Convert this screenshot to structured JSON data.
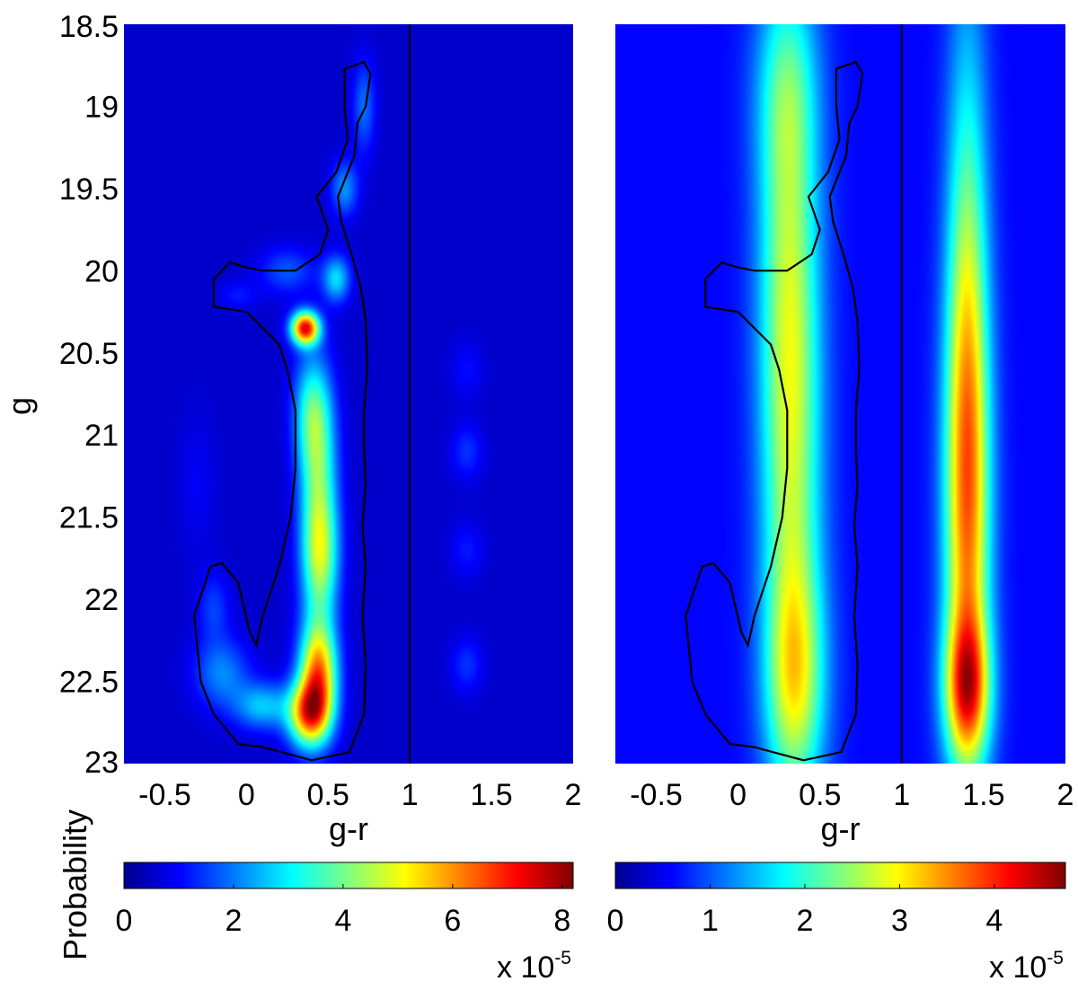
{
  "chart_data": [
    {
      "type": "heatmap",
      "panel": "left",
      "xlabel": "g-r",
      "ylabel": "g",
      "xlim": [
        -0.75,
        2
      ],
      "ylim": [
        23,
        18.5
      ],
      "y_axis_reversed": true,
      "x_ticks": [
        "-0.5",
        "0",
        "0.5",
        "1",
        "1.5",
        "2"
      ],
      "x_tick_values": [
        -0.5,
        0,
        0.5,
        1,
        1.5,
        2
      ],
      "y_ticks": [
        "18.5",
        "19",
        "19.5",
        "20",
        "20.5",
        "21",
        "21.5",
        "22",
        "22.5",
        "23"
      ],
      "y_tick_values": [
        18.5,
        19,
        19.5,
        20,
        20.5,
        21,
        21.5,
        22,
        22.5,
        23
      ],
      "vertical_line_x": 1,
      "background_color": "#0000a8",
      "colormap": "jet",
      "colorbar": {
        "label": "Probability",
        "min": 0,
        "max": 8.2,
        "ticks": [
          "0",
          "2",
          "4",
          "6",
          "8"
        ],
        "tick_values": [
          0,
          2,
          4,
          6,
          8
        ],
        "exponent_prefix": "x 10",
        "exponent": "-5"
      },
      "density_peaks": [
        {
          "x": 0.36,
          "y": 20.35,
          "sx": 0.06,
          "sy": 0.07,
          "amp": 6.6
        },
        {
          "x": 0.44,
          "y": 22.45,
          "sx": 0.08,
          "sy": 0.22,
          "amp": 5.4
        },
        {
          "x": 0.38,
          "y": 22.7,
          "sx": 0.09,
          "sy": 0.14,
          "amp": 5.0
        },
        {
          "x": 0.45,
          "y": 21.75,
          "sx": 0.08,
          "sy": 0.28,
          "amp": 3.6
        },
        {
          "x": 0.44,
          "y": 21.2,
          "sx": 0.08,
          "sy": 0.35,
          "amp": 2.6
        },
        {
          "x": 0.4,
          "y": 20.85,
          "sx": 0.08,
          "sy": 0.25,
          "amp": 2.2
        },
        {
          "x": 0.55,
          "y": 20.05,
          "sx": 0.06,
          "sy": 0.1,
          "amp": 2.2
        },
        {
          "x": 0.6,
          "y": 19.5,
          "sx": 0.06,
          "sy": 0.12,
          "amp": 1.6
        },
        {
          "x": 0.25,
          "y": 20.0,
          "sx": 0.12,
          "sy": 0.1,
          "amp": 1.1
        },
        {
          "x": 0.72,
          "y": 19.0,
          "sx": 0.05,
          "sy": 0.2,
          "amp": 1.3
        },
        {
          "x": -0.15,
          "y": 22.45,
          "sx": 0.12,
          "sy": 0.15,
          "amp": 1.5
        },
        {
          "x": 0.1,
          "y": 22.65,
          "sx": 0.12,
          "sy": 0.1,
          "amp": 2.0
        },
        {
          "x": -0.2,
          "y": 22.05,
          "sx": 0.07,
          "sy": 0.15,
          "amp": 0.9
        },
        {
          "x": -0.05,
          "y": 20.15,
          "sx": 0.08,
          "sy": 0.06,
          "amp": 0.6
        },
        {
          "x": 1.35,
          "y": 21.1,
          "sx": 0.07,
          "sy": 0.12,
          "amp": 0.8
        },
        {
          "x": 1.35,
          "y": 22.4,
          "sx": 0.07,
          "sy": 0.12,
          "amp": 0.8
        },
        {
          "x": 1.35,
          "y": 21.7,
          "sx": 0.07,
          "sy": 0.12,
          "amp": 0.6
        },
        {
          "x": 1.35,
          "y": 20.6,
          "sx": 0.07,
          "sy": 0.12,
          "amp": 0.5
        },
        {
          "x": -0.3,
          "y": 21.3,
          "sx": 0.08,
          "sy": 0.3,
          "amp": 0.35
        }
      ],
      "contour": [
        [
          0.6,
          18.77
        ],
        [
          0.72,
          18.73
        ],
        [
          0.76,
          18.8
        ],
        [
          0.73,
          19.0
        ],
        [
          0.68,
          19.1
        ],
        [
          0.66,
          19.3
        ],
        [
          0.6,
          19.45
        ],
        [
          0.56,
          19.55
        ],
        [
          0.58,
          19.7
        ],
        [
          0.65,
          19.92
        ],
        [
          0.7,
          20.1
        ],
        [
          0.73,
          20.3
        ],
        [
          0.74,
          20.6
        ],
        [
          0.72,
          20.85
        ],
        [
          0.72,
          21.1
        ],
        [
          0.73,
          21.3
        ],
        [
          0.71,
          21.55
        ],
        [
          0.73,
          21.8
        ],
        [
          0.71,
          22.1
        ],
        [
          0.73,
          22.4
        ],
        [
          0.72,
          22.7
        ],
        [
          0.63,
          22.93
        ],
        [
          0.4,
          22.98
        ],
        [
          0.1,
          22.9
        ],
        [
          -0.05,
          22.88
        ],
        [
          -0.2,
          22.7
        ],
        [
          -0.28,
          22.5
        ],
        [
          -0.32,
          22.1
        ],
        [
          -0.22,
          21.8
        ],
        [
          -0.15,
          21.78
        ],
        [
          -0.05,
          21.9
        ],
        [
          0.02,
          22.2
        ],
        [
          0.06,
          22.28
        ],
        [
          0.1,
          22.1
        ],
        [
          0.2,
          21.8
        ],
        [
          0.27,
          21.5
        ],
        [
          0.3,
          21.2
        ],
        [
          0.3,
          20.85
        ],
        [
          0.25,
          20.6
        ],
        [
          0.2,
          20.45
        ],
        [
          0.0,
          20.25
        ],
        [
          -0.2,
          20.22
        ],
        [
          -0.2,
          20.05
        ],
        [
          -0.1,
          19.95
        ],
        [
          0.0,
          19.98
        ],
        [
          0.1,
          20.0
        ],
        [
          0.3,
          20.0
        ],
        [
          0.45,
          19.9
        ],
        [
          0.5,
          19.75
        ],
        [
          0.43,
          19.55
        ],
        [
          0.55,
          19.4
        ],
        [
          0.62,
          19.2
        ],
        [
          0.6,
          19.0
        ],
        [
          0.6,
          18.77
        ]
      ]
    },
    {
      "type": "heatmap",
      "panel": "right",
      "xlabel": "g-r",
      "xlim": [
        -0.75,
        2
      ],
      "ylim": [
        23,
        18.5
      ],
      "y_axis_reversed": true,
      "x_ticks": [
        "-0.5",
        "0",
        "0.5",
        "1",
        "1.5",
        "2"
      ],
      "x_tick_values": [
        -0.5,
        0,
        0.5,
        1,
        1.5,
        2
      ],
      "vertical_line_x": 1,
      "background_color": "#0000a8",
      "colormap": "jet",
      "colorbar": {
        "min": 0,
        "max": 4.75,
        "ticks": [
          "0",
          "1",
          "2",
          "3",
          "4"
        ],
        "tick_values": [
          0,
          1,
          2,
          3,
          4
        ],
        "exponent_prefix": "x 10",
        "exponent": "-5"
      },
      "density_peaks": [
        {
          "x": 1.4,
          "y": 22.55,
          "sx": 0.1,
          "sy": 0.3,
          "amp": 2.3
        },
        {
          "x": 1.4,
          "y": 21.5,
          "sx": 0.1,
          "sy": 1.1,
          "amp": 2.5
        },
        {
          "x": 1.4,
          "y": 20.0,
          "sx": 0.09,
          "sy": 1.3,
          "amp": 1.3
        },
        {
          "x": 0.35,
          "y": 22.5,
          "sx": 0.13,
          "sy": 0.5,
          "amp": 1.7
        },
        {
          "x": 0.33,
          "y": 21.2,
          "sx": 0.13,
          "sy": 1.2,
          "amp": 1.6
        },
        {
          "x": 0.3,
          "y": 19.8,
          "sx": 0.13,
          "sy": 1.1,
          "amp": 1.2
        },
        {
          "x": 0.3,
          "y": 18.9,
          "sx": 0.14,
          "sy": 0.45,
          "amp": 0.8
        }
      ],
      "contour": [
        [
          0.6,
          18.77
        ],
        [
          0.72,
          18.73
        ],
        [
          0.76,
          18.8
        ],
        [
          0.73,
          19.0
        ],
        [
          0.68,
          19.1
        ],
        [
          0.66,
          19.3
        ],
        [
          0.6,
          19.45
        ],
        [
          0.56,
          19.55
        ],
        [
          0.58,
          19.7
        ],
        [
          0.65,
          19.92
        ],
        [
          0.7,
          20.1
        ],
        [
          0.73,
          20.3
        ],
        [
          0.74,
          20.6
        ],
        [
          0.72,
          20.85
        ],
        [
          0.72,
          21.1
        ],
        [
          0.73,
          21.3
        ],
        [
          0.71,
          21.55
        ],
        [
          0.73,
          21.8
        ],
        [
          0.71,
          22.1
        ],
        [
          0.73,
          22.4
        ],
        [
          0.72,
          22.7
        ],
        [
          0.63,
          22.93
        ],
        [
          0.4,
          22.98
        ],
        [
          0.1,
          22.9
        ],
        [
          -0.05,
          22.88
        ],
        [
          -0.2,
          22.7
        ],
        [
          -0.28,
          22.5
        ],
        [
          -0.32,
          22.1
        ],
        [
          -0.22,
          21.8
        ],
        [
          -0.15,
          21.78
        ],
        [
          -0.05,
          21.9
        ],
        [
          0.02,
          22.2
        ],
        [
          0.06,
          22.28
        ],
        [
          0.1,
          22.1
        ],
        [
          0.2,
          21.8
        ],
        [
          0.27,
          21.5
        ],
        [
          0.3,
          21.2
        ],
        [
          0.3,
          20.85
        ],
        [
          0.25,
          20.6
        ],
        [
          0.2,
          20.45
        ],
        [
          0.0,
          20.25
        ],
        [
          -0.2,
          20.22
        ],
        [
          -0.2,
          20.05
        ],
        [
          -0.1,
          19.95
        ],
        [
          0.0,
          19.98
        ],
        [
          0.1,
          20.0
        ],
        [
          0.3,
          20.0
        ],
        [
          0.45,
          19.9
        ],
        [
          0.5,
          19.75
        ],
        [
          0.43,
          19.55
        ],
        [
          0.55,
          19.4
        ],
        [
          0.62,
          19.2
        ],
        [
          0.6,
          19.0
        ],
        [
          0.6,
          18.77
        ]
      ]
    }
  ]
}
